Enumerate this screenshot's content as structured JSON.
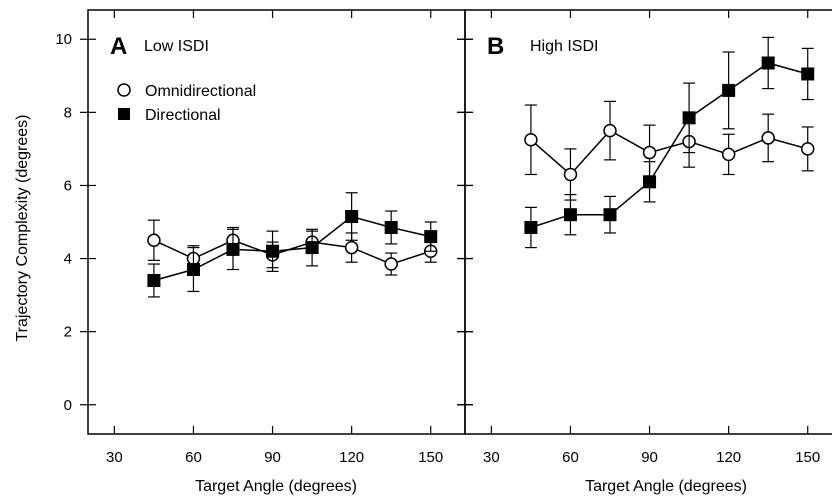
{
  "chart_data": {
    "type": "line",
    "ylabel": "Trajectory Complexity (degrees)",
    "ylim": [
      -0.8,
      10.8
    ],
    "yticks": [
      0,
      2,
      4,
      6,
      8,
      10
    ],
    "xlim": [
      20,
      163
    ],
    "xticks": [
      30,
      60,
      90,
      120,
      150
    ],
    "legend": {
      "placement": "top-left of panel A",
      "entries": [
        {
          "label": "Omnidirectional",
          "marker": "open-circle"
        },
        {
          "label": "Directional",
          "marker": "filled-square"
        }
      ]
    },
    "panels": [
      {
        "letter": "A",
        "subtitle": "Low ISDI",
        "xlabel": "Target Angle (degrees)",
        "series": [
          {
            "marker": "open-circle",
            "x": [
              45,
              60,
              75,
              90,
              105,
              120,
              135,
              150
            ],
            "y": [
              4.5,
              4.0,
              4.5,
              4.1,
              4.45,
              4.3,
              3.85,
              4.2
            ],
            "err": [
              0.55,
              0.35,
              0.35,
              0.35,
              0.3,
              0.4,
              0.3,
              0.3
            ]
          },
          {
            "marker": "filled-square",
            "x": [
              45,
              60,
              75,
              90,
              105,
              120,
              135,
              150
            ],
            "y": [
              3.4,
              3.7,
              4.25,
              4.2,
              4.3,
              5.15,
              4.85,
              4.6
            ],
            "err": [
              0.45,
              0.6,
              0.55,
              0.55,
              0.5,
              0.65,
              0.45,
              0.4
            ]
          }
        ]
      },
      {
        "letter": "B",
        "subtitle": "High ISDI",
        "xlabel": "Target Angle (degrees)",
        "series": [
          {
            "marker": "open-circle",
            "x": [
              45,
              60,
              75,
              90,
              105,
              120,
              135,
              150
            ],
            "y": [
              7.25,
              6.3,
              7.5,
              6.9,
              7.2,
              6.85,
              7.3,
              7.0
            ],
            "err": [
              0.95,
              0.7,
              0.8,
              0.75,
              0.7,
              0.55,
              0.65,
              0.6
            ]
          },
          {
            "marker": "filled-square",
            "x": [
              45,
              60,
              75,
              90,
              105,
              120,
              135,
              150
            ],
            "y": [
              4.85,
              5.2,
              5.2,
              6.1,
              7.85,
              8.6,
              9.35,
              9.05
            ],
            "err": [
              0.55,
              0.55,
              0.5,
              0.55,
              0.95,
              1.05,
              0.7,
              0.7
            ]
          }
        ]
      }
    ]
  }
}
